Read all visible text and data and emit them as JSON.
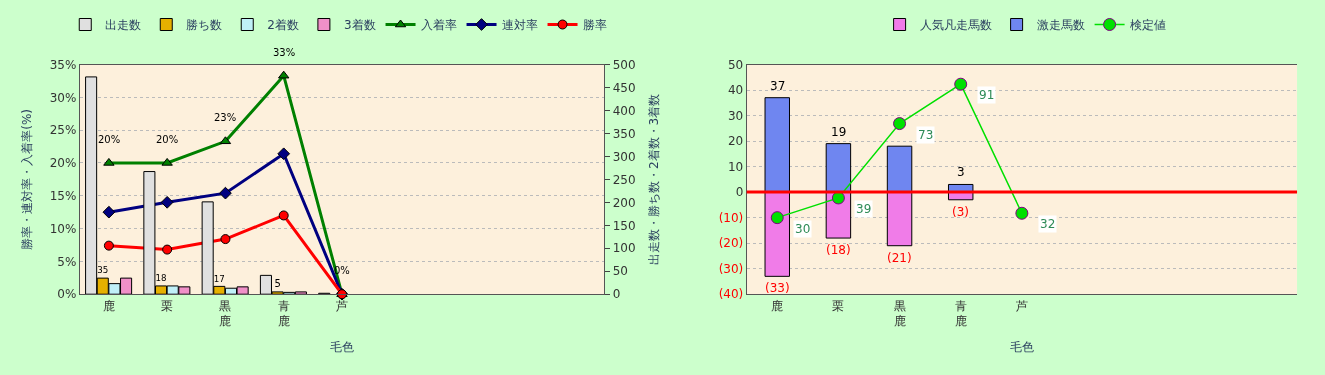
{
  "chart_data": [
    {
      "type": "bar",
      "xlabel": "毛色",
      "ylabel": "勝率・連対率・入着率(%)",
      "y2label": "出走数・勝ち数・2着数・3着数",
      "categories": [
        "鹿",
        "栗",
        "黒鹿",
        "青鹿",
        "芦",
        null,
        null,
        null,
        null
      ],
      "series": [
        {
          "name": "出走数",
          "color": "#e0e0e0",
          "axis": "y2",
          "values": [
            473,
            267,
            201,
            41,
            2,
            null,
            null,
            null,
            null
          ]
        },
        {
          "name": "勝ち数",
          "color": "#e6b000",
          "axis": "y2",
          "values": [
            35,
            18,
            17,
            5,
            0,
            null,
            null,
            null,
            null
          ],
          "value_labels": [
            "35",
            "18",
            "17",
            "5",
            null,
            null,
            null,
            null,
            null
          ]
        },
        {
          "name": "2着数",
          "color": "#c0f0f8",
          "axis": "y2",
          "values": [
            23,
            18,
            13,
            4,
            0,
            null,
            null,
            null,
            null
          ]
        },
        {
          "name": "3着数",
          "color": "#f090c8",
          "axis": "y2",
          "values": [
            35,
            16,
            16,
            5,
            0,
            null,
            null,
            null,
            null
          ]
        },
        {
          "name": "入着率",
          "type": "line",
          "color": "#008000",
          "marker": "triangle",
          "values": [
            20,
            20,
            23.3,
            33.3,
            0,
            null,
            null,
            null,
            null
          ],
          "value_labels": [
            "20%",
            "20%",
            "23%",
            "33%",
            "0%",
            null,
            null,
            null,
            null
          ]
        },
        {
          "name": "連対率",
          "type": "line",
          "color": "#000080",
          "marker": "diamond",
          "values": [
            12.5,
            14,
            15.4,
            21.4,
            0,
            null,
            null,
            null,
            null
          ]
        },
        {
          "name": "勝率",
          "type": "line",
          "color": "#ff0000",
          "marker": "circle",
          "values": [
            7.4,
            6.8,
            8.4,
            12,
            0,
            null,
            null,
            null,
            null
          ]
        }
      ],
      "ylim": [
        0,
        35
      ],
      "yticks": [
        {
          "value": 0,
          "label": "0%"
        },
        {
          "value": 5,
          "label": "5%"
        },
        {
          "value": 10,
          "label": "10%"
        },
        {
          "value": 15,
          "label": "15%"
        },
        {
          "value": 20,
          "label": "20%"
        },
        {
          "value": 25,
          "label": "25%"
        },
        {
          "value": 30,
          "label": "30%"
        },
        {
          "value": 35,
          "label": "35%"
        }
      ],
      "y2lim": [
        0,
        500
      ],
      "y2ticks": [
        0,
        50,
        100,
        150,
        200,
        250,
        300,
        350,
        400,
        450,
        500
      ],
      "grid": true,
      "legend": "top"
    },
    {
      "type": "bar",
      "stacked": true,
      "xlabel": "毛色",
      "categories": [
        "鹿",
        "栗",
        "黒鹿",
        "青鹿",
        "芦",
        null,
        null,
        null,
        null
      ],
      "series": [
        {
          "name": "人気凡走馬数",
          "color": "#f07ce8",
          "values": [
            -33,
            -18,
            -21,
            -3,
            0,
            null,
            null,
            null,
            null
          ],
          "value_labels": [
            "(33)",
            "(18)",
            "(21)",
            "(3)",
            null,
            null,
            null,
            null,
            null
          ]
        },
        {
          "name": "激走馬数",
          "color": "#6f86f0",
          "values": [
            37,
            19,
            18,
            3,
            0,
            null,
            null,
            null,
            null
          ],
          "value_labels": [
            "37",
            "19",
            null,
            "3",
            null,
            null,
            null,
            null,
            null
          ]
        },
        {
          "name": "検定値",
          "type": "line",
          "color": "#00e000",
          "marker": "circle",
          "axis": "y2",
          "values": [
            30,
            39,
            73,
            91,
            32,
            null,
            null,
            null,
            null
          ],
          "value_labels": [
            "30",
            "39",
            "73",
            "91",
            "32",
            null,
            null,
            null,
            null
          ]
        }
      ],
      "ylim": [
        -40,
        50
      ],
      "yticks": [
        {
          "value": -40,
          "label": "(40)"
        },
        {
          "value": -30,
          "label": "(30)"
        },
        {
          "value": -20,
          "label": "(20)"
        },
        {
          "value": -10,
          "label": "(10)"
        },
        0,
        10,
        20,
        30,
        40,
        50
      ],
      "y2lim": [
        -5,
        100
      ],
      "ref_lines": [
        {
          "axis": "y",
          "value": 0,
          "color": "#ff0000"
        }
      ],
      "grid": true,
      "legend": "top"
    }
  ]
}
